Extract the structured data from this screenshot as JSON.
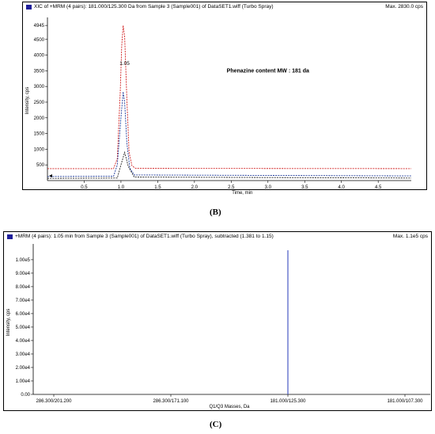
{
  "chart_data": [
    {
      "panel_label": "(B)",
      "type": "line",
      "title": "XIC of +MRM (4 pairs): 181.000/125.300 Da from Sample 3 (Sample001) of DataSET1.wiff (Turbo Spray)",
      "max_label": "Max. 2830.0 cps",
      "annotation": "Phenazine content  MW : 181 da",
      "peak_label": "1.05",
      "xlabel": "Time, min",
      "ylabel": "Intensity, cps",
      "xlim": [
        0.0,
        4.95
      ],
      "ylim": [
        0,
        5100
      ],
      "x_ticks": [
        "0.5",
        "1.0",
        "1.5",
        "2.0",
        "2.5",
        "3.0",
        "3.5",
        "4.0",
        "4.5"
      ],
      "y_ticks": [
        "500",
        "1000",
        "1500",
        "2000",
        "2500",
        "3000",
        "3500",
        "4000",
        "4500",
        "4945"
      ],
      "series": [
        {
          "color": "#d02020",
          "x": [
            0.0,
            0.9,
            0.95,
            0.99,
            1.01,
            1.03,
            1.05,
            1.08,
            1.11,
            1.15,
            1.2,
            4.95
          ],
          "y": [
            380,
            380,
            700,
            2800,
            4300,
            4945,
            4600,
            2600,
            900,
            470,
            390,
            380
          ]
        },
        {
          "color": "#1e3a9a",
          "x": [
            0.0,
            0.9,
            0.95,
            1.0,
            1.03,
            1.05,
            1.08,
            1.12,
            1.18,
            4.95
          ],
          "y": [
            130,
            140,
            500,
            2000,
            2830,
            2500,
            1200,
            400,
            180,
            150
          ]
        },
        {
          "color": "#222222",
          "x": [
            0.0,
            0.95,
            1.0,
            1.05,
            1.1,
            1.18,
            4.95
          ],
          "y": [
            70,
            80,
            500,
            900,
            450,
            110,
            80
          ]
        }
      ]
    },
    {
      "panel_label": "(C)",
      "type": "bar",
      "title": "+MRM (4 pairs): 1.05 min from Sample 3 (Sample001) of DataSET1.wiff (Turbo Spray), subtracted (1.381 to 1.15)",
      "max_label": "Max. 1.1e5 cps",
      "xlabel": "Q1/Q3 Masses, Da",
      "ylabel": "Intensity, cps",
      "categories": [
        "286.300/201.200",
        "286.300/171.100",
        "181.000/125.300",
        "181.000/107.300"
      ],
      "values": [
        0,
        0,
        107000,
        0
      ],
      "ylim": [
        0,
        107000
      ],
      "y_ticks": [
        "0.00",
        "1.00e4",
        "2.00e4",
        "3.00e4",
        "4.00e4",
        "5.00e4",
        "6.00e4",
        "7.00e4",
        "8.00e4",
        "9.00e4",
        "1.00e5"
      ],
      "bar_color": "#4a5bc4"
    }
  ]
}
